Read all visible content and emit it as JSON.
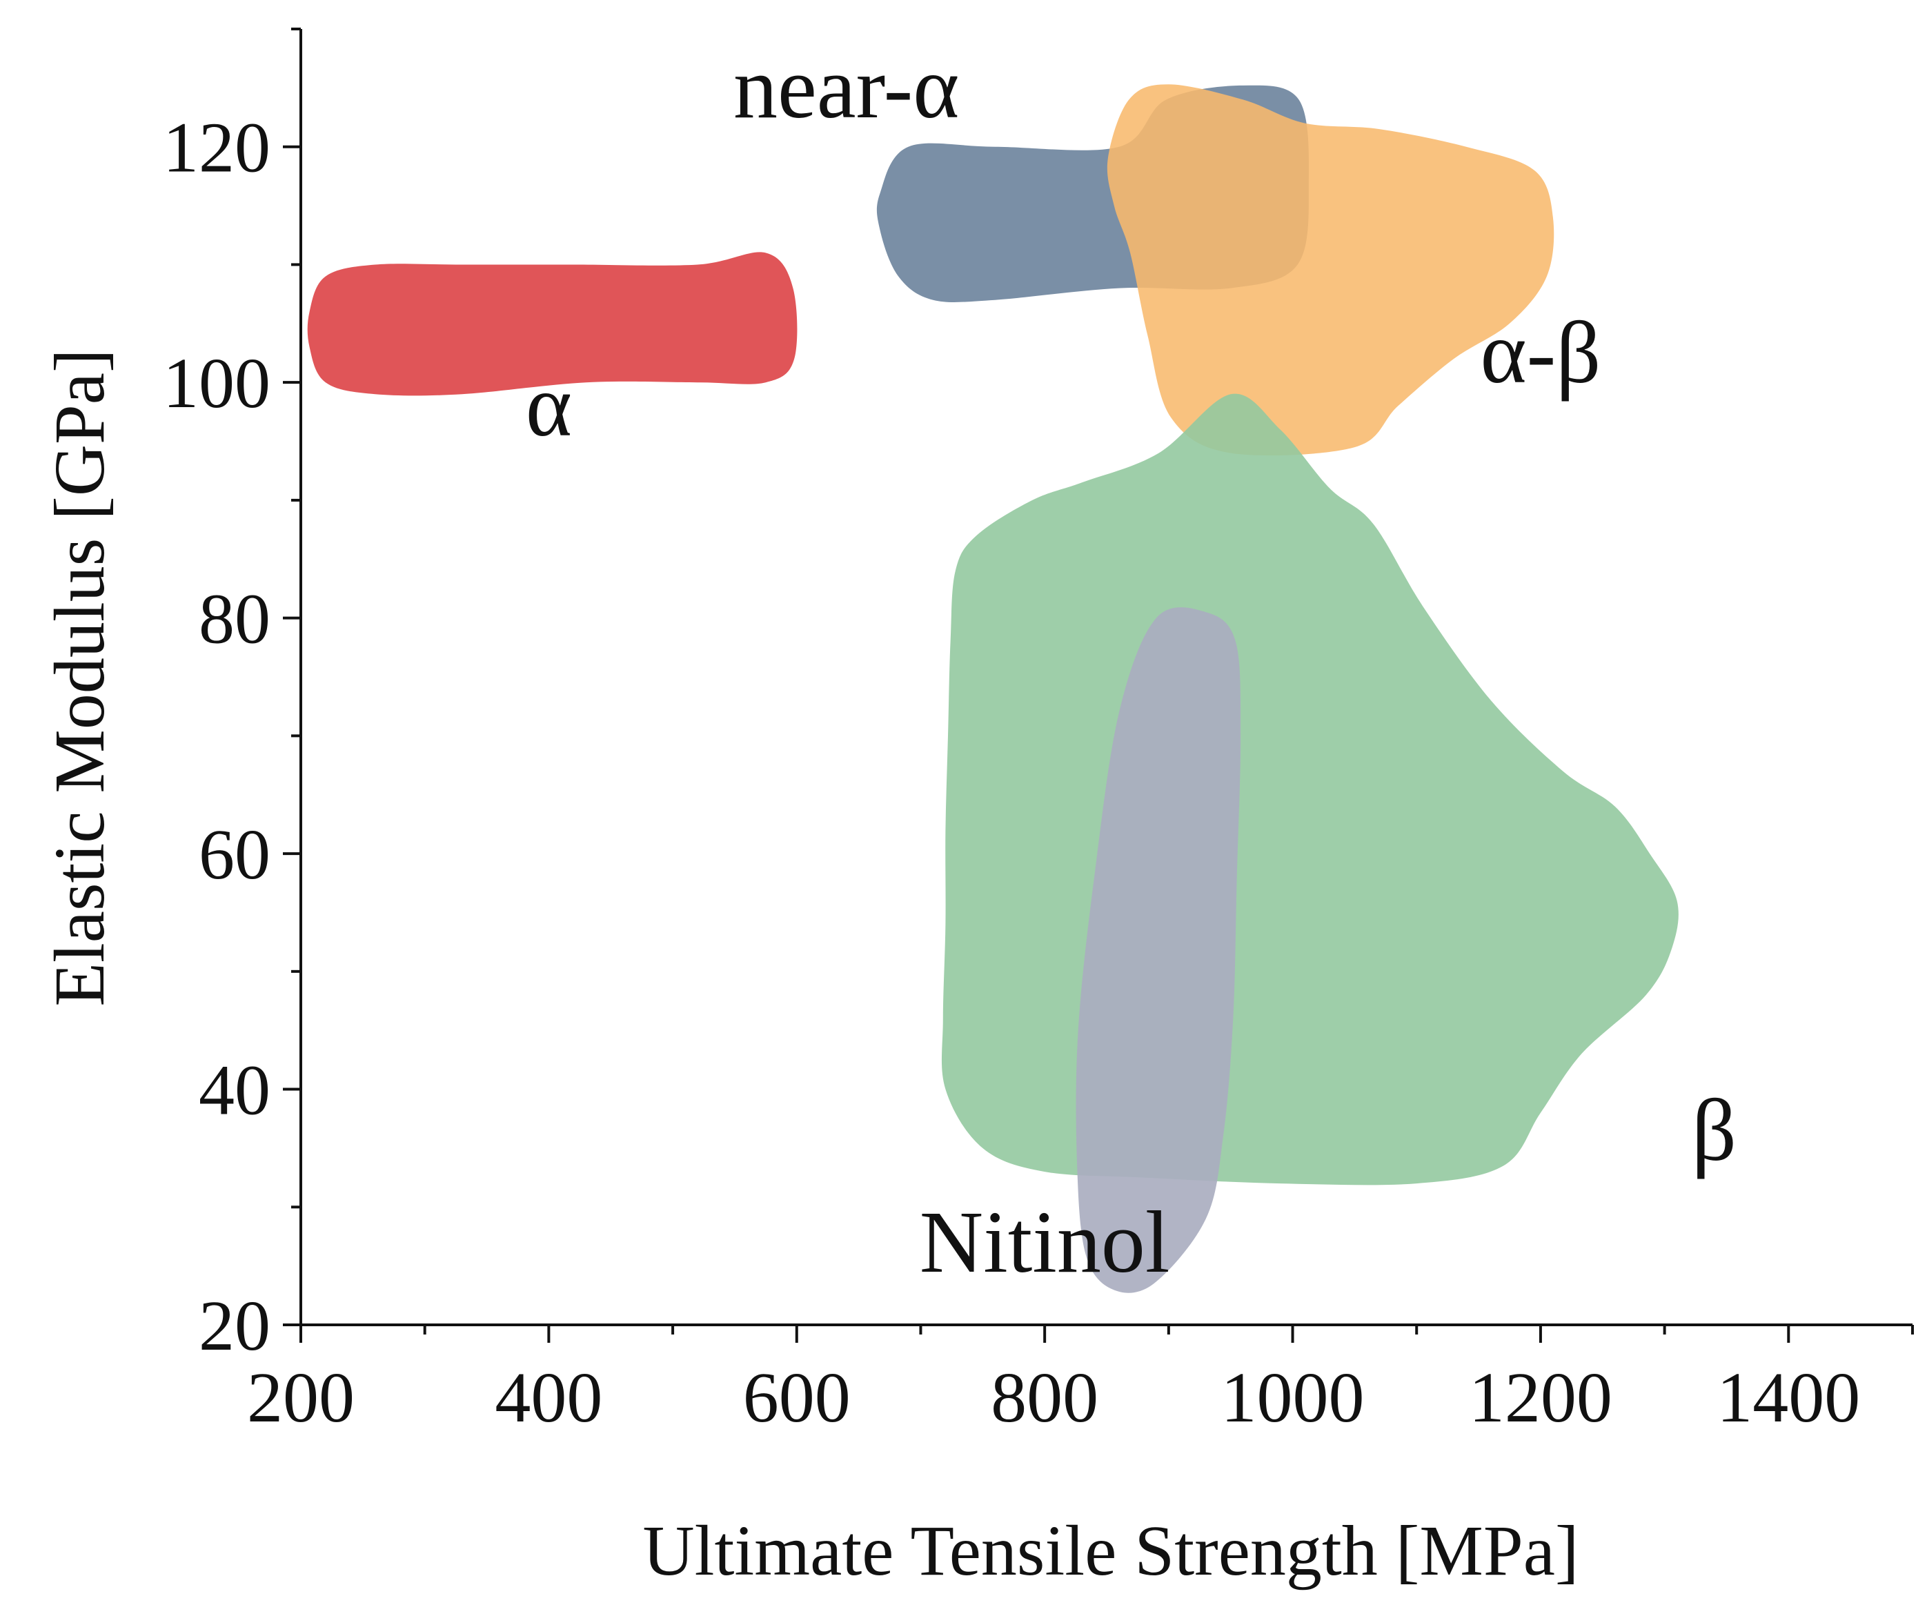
{
  "chart_data": {
    "type": "scatter",
    "subtype": "material property region map (Ashby-style)",
    "title": "",
    "xlabel": "Ultimate Tensile Strength [MPa]",
    "ylabel": "Elastic Modulus [GPa]",
    "xlim": [
      200,
      1500
    ],
    "ylim": [
      20,
      130
    ],
    "x_ticks": [
      200,
      400,
      600,
      800,
      1000,
      1200,
      1400
    ],
    "y_ticks": [
      20,
      40,
      60,
      80,
      100,
      120
    ],
    "x_minor_step": 100,
    "y_minor_step": 10,
    "grid": false,
    "regions": [
      {
        "name": "alpha",
        "label": "α",
        "color": "#e05558",
        "opacity": 1,
        "label_at": [
          400,
          95.5
        ],
        "outline": [
          [
            207,
            106
          ],
          [
            220,
            109
          ],
          [
            260,
            110
          ],
          [
            330,
            110
          ],
          [
            420,
            110
          ],
          [
            520,
            110
          ],
          [
            575,
            111
          ],
          [
            597,
            108
          ],
          [
            598,
            102
          ],
          [
            575,
            100
          ],
          [
            520,
            100
          ],
          [
            430,
            100
          ],
          [
            330,
            99
          ],
          [
            260,
            99
          ],
          [
            220,
            100
          ],
          [
            207,
            103
          ]
        ]
      },
      {
        "name": "near-alpha",
        "label": "near-α",
        "color": "#7a8fa6",
        "opacity": 1,
        "label_at": [
          640,
          122.5
        ],
        "outline": [
          [
            667,
            116
          ],
          [
            690,
            120
          ],
          [
            760,
            120
          ],
          [
            860,
            120
          ],
          [
            898,
            124
          ],
          [
            960,
            125.2
          ],
          [
            1005,
            124
          ],
          [
            1013,
            117
          ],
          [
            1004,
            110
          ],
          [
            950,
            108
          ],
          [
            860,
            108
          ],
          [
            760,
            107
          ],
          [
            710,
            107
          ],
          [
            682,
            109
          ],
          [
            667,
            113
          ]
        ]
      },
      {
        "name": "alpha-beta",
        "label": "α-β",
        "color": "#f8b96d",
        "opacity": 0.88,
        "label_at": [
          1200,
          100
        ],
        "outline": [
          [
            851,
            119
          ],
          [
            868,
            124
          ],
          [
            900,
            125.3
          ],
          [
            960,
            124
          ],
          [
            1010,
            122
          ],
          [
            1070,
            121.5
          ],
          [
            1140,
            120
          ],
          [
            1195,
            118
          ],
          [
            1210,
            114
          ],
          [
            1205,
            109
          ],
          [
            1175,
            105
          ],
          [
            1130,
            102
          ],
          [
            1085,
            98
          ],
          [
            1050,
            94.5
          ],
          [
            950,
            94
          ],
          [
            902,
            97
          ],
          [
            883,
            104
          ],
          [
            869,
            111
          ],
          [
            856,
            115
          ]
        ]
      },
      {
        "name": "beta",
        "label": "β",
        "color": "#94c9a0",
        "opacity": 0.9,
        "label_at": [
          1340,
          34
        ],
        "outline": [
          [
            728,
            84
          ],
          [
            745,
            87
          ],
          [
            790,
            90
          ],
          [
            830,
            91.5
          ],
          [
            892,
            94
          ],
          [
            950,
            99
          ],
          [
            990,
            96
          ],
          [
            1030,
            91
          ],
          [
            1065,
            88
          ],
          [
            1105,
            81
          ],
          [
            1160,
            73
          ],
          [
            1218,
            67
          ],
          [
            1260,
            64
          ],
          [
            1288,
            60
          ],
          [
            1310,
            56
          ],
          [
            1306,
            52
          ],
          [
            1285,
            48
          ],
          [
            1233,
            43
          ],
          [
            1200,
            38
          ],
          [
            1170,
            33.5
          ],
          [
            1100,
            32
          ],
          [
            990,
            32
          ],
          [
            880,
            32.5
          ],
          [
            800,
            33
          ],
          [
            750,
            35
          ],
          [
            720,
            40
          ],
          [
            718,
            46
          ],
          [
            720,
            54
          ],
          [
            720,
            62
          ],
          [
            722,
            70
          ],
          [
            724,
            78
          ]
        ]
      },
      {
        "name": "nitinol",
        "label": "Nitinol",
        "color": "#aaaec0",
        "opacity": 0.92,
        "label_at": [
          800,
          24.5
        ],
        "outline": [
          [
            827,
            45
          ],
          [
            840,
            58
          ],
          [
            860,
            72
          ],
          [
            890,
            80
          ],
          [
            930,
            80.5
          ],
          [
            954,
            78
          ],
          [
            958,
            70
          ],
          [
            955,
            58
          ],
          [
            952,
            46
          ],
          [
            944,
            36
          ],
          [
            930,
            29
          ],
          [
            888,
            23.5
          ],
          [
            855,
            23
          ],
          [
            833,
            26
          ],
          [
            826,
            34
          ]
        ]
      }
    ]
  }
}
